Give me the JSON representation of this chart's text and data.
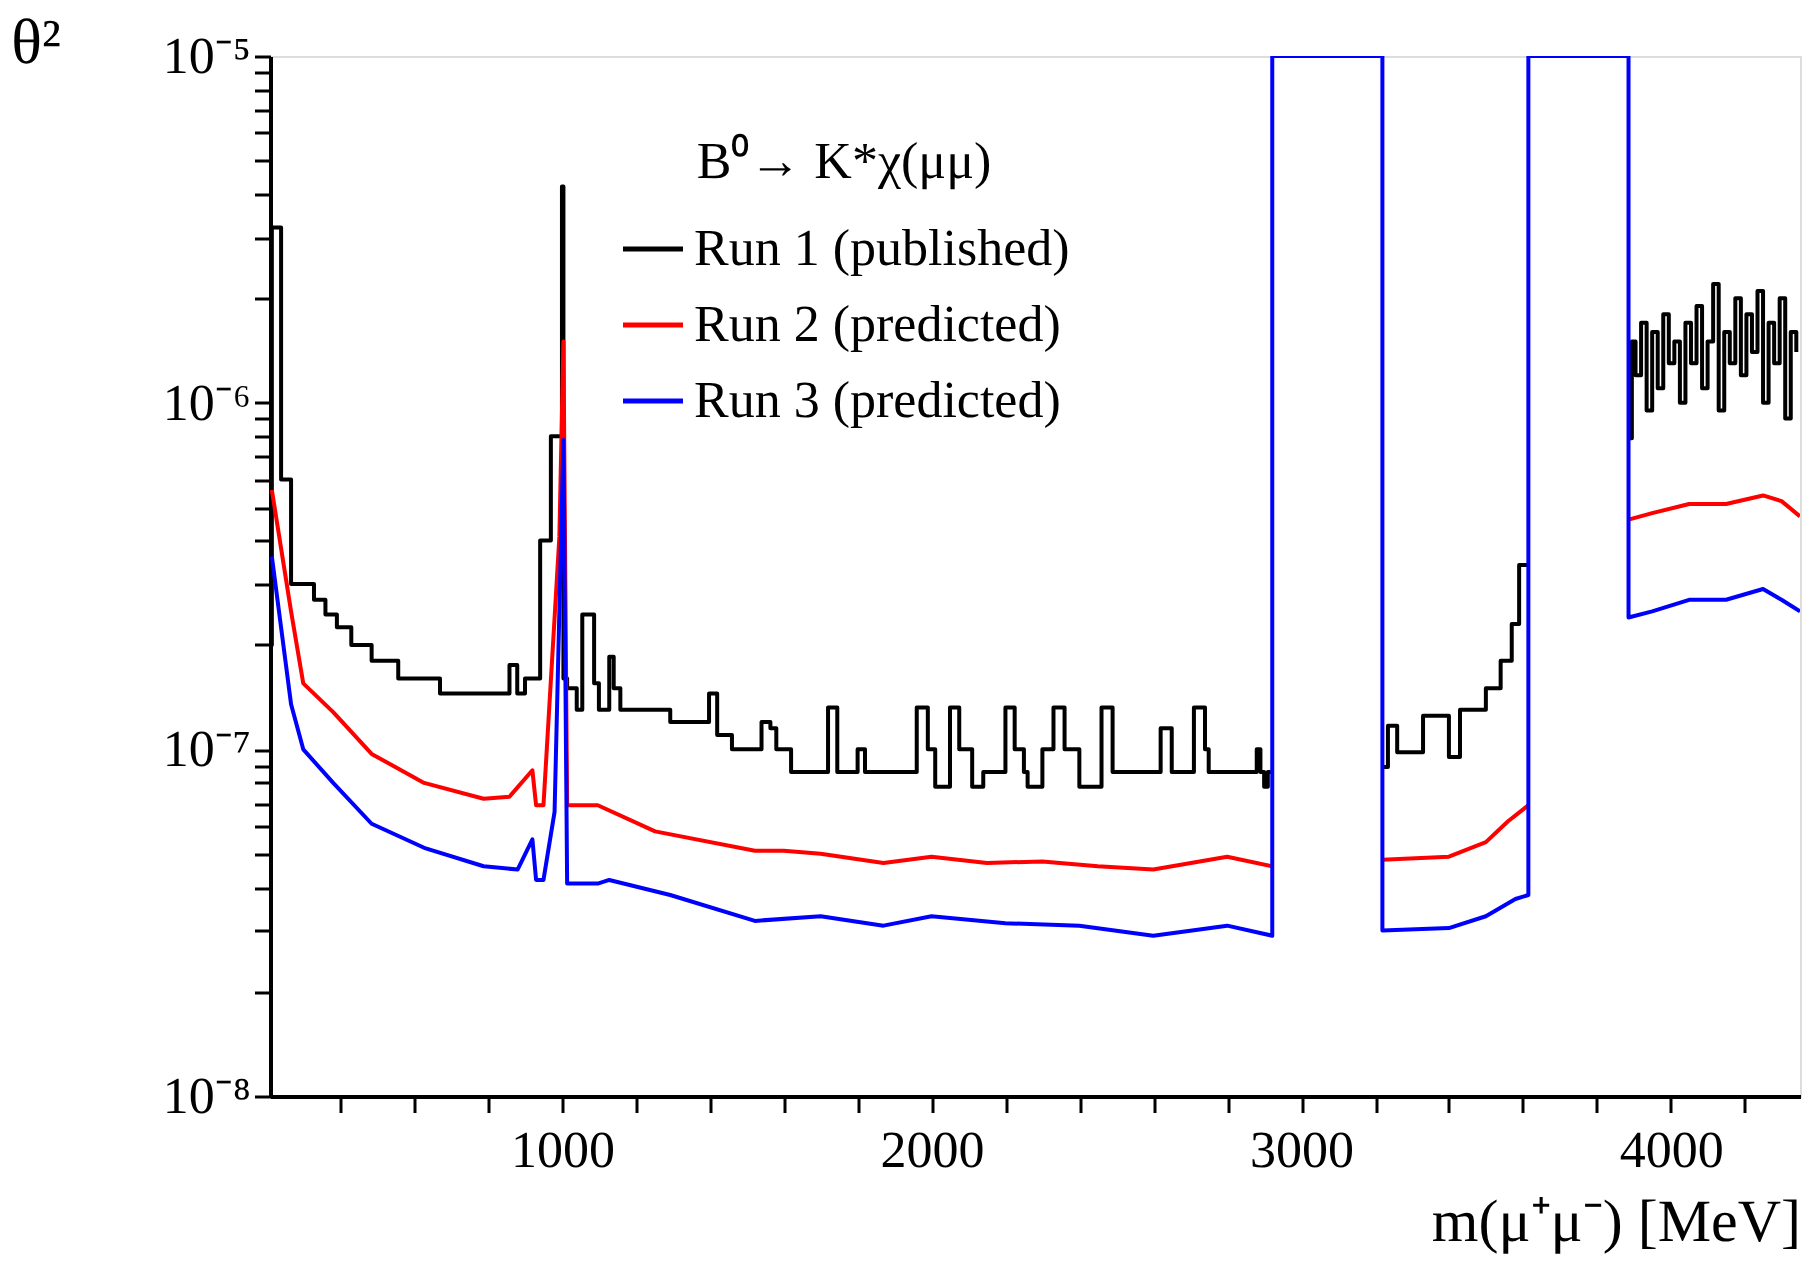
{
  "chart_data": {
    "type": "line",
    "xlabel": "m(μ⁺μ⁻) [MeV]",
    "ylabel": "θ²",
    "legend_title": "B⁰→ K*χ(μμ)",
    "log": "y",
    "grid": false,
    "legend": "top",
    "line_style": "solid",
    "marker": "none",
    "xlim": [
      210,
      4350
    ],
    "xticks": [
      {
        "value": 400,
        "label": null
      },
      {
        "value": 600,
        "label": null
      },
      {
        "value": 800,
        "label": null
      },
      1000,
      {
        "value": 1200,
        "label": null
      },
      {
        "value": 1400,
        "label": null
      },
      {
        "value": 1600,
        "label": null
      },
      {
        "value": 1800,
        "label": null
      },
      2000,
      {
        "value": 2200,
        "label": null
      },
      {
        "value": 2400,
        "label": null
      },
      {
        "value": 2600,
        "label": null
      },
      {
        "value": 2800,
        "label": null
      },
      3000,
      {
        "value": 3200,
        "label": null
      },
      {
        "value": 3400,
        "label": null
      },
      {
        "value": 3600,
        "label": null
      },
      {
        "value": 3800,
        "label": null
      },
      4000,
      {
        "value": 4200,
        "label": null
      }
    ],
    "ylim": [
      1e-08,
      1e-05
    ],
    "yticks": [
      {
        "value": 1e-08,
        "label": "10⁻⁸"
      },
      {
        "value": 2e-08,
        "label": null
      },
      {
        "value": 3e-08,
        "label": null
      },
      {
        "value": 4e-08,
        "label": null
      },
      {
        "value": 5e-08,
        "label": null
      },
      {
        "value": 6e-08,
        "label": null
      },
      {
        "value": 7e-08,
        "label": null
      },
      {
        "value": 8e-08,
        "label": null
      },
      {
        "value": 9e-08,
        "label": null
      },
      {
        "value": 1e-07,
        "label": "10⁻⁷"
      },
      {
        "value": 2e-07,
        "label": null
      },
      {
        "value": 3e-07,
        "label": null
      },
      {
        "value": 4e-07,
        "label": null
      },
      {
        "value": 5e-07,
        "label": null
      },
      {
        "value": 6e-07,
        "label": null
      },
      {
        "value": 7e-07,
        "label": null
      },
      {
        "value": 8e-07,
        "label": null
      },
      {
        "value": 9e-07,
        "label": null
      },
      {
        "value": 1e-06,
        "label": "10⁻⁶"
      },
      {
        "value": 2e-06,
        "label": null
      },
      {
        "value": 3e-06,
        "label": null
      },
      {
        "value": 4e-06,
        "label": null
      },
      {
        "value": 5e-06,
        "label": null
      },
      {
        "value": 6e-06,
        "label": null
      },
      {
        "value": 7e-06,
        "label": null
      },
      {
        "value": 8e-06,
        "label": null
      },
      {
        "value": 9e-06,
        "label": null
      },
      {
        "value": 1e-05,
        "label": "10⁻⁵"
      }
    ],
    "series": [
      {
        "name": "Run 1 (published)",
        "color": "#000000",
        "type": "step",
        "x": [
          211,
          215,
          240,
          267,
          329,
          360,
          391,
          430,
          485,
          557,
          670,
          858,
          879,
          900,
          941,
          970,
          1000,
          1004,
          1014,
          1040,
          1055,
          1087,
          1100,
          1128,
          1140,
          1158,
          1200,
          1293,
          1398,
          1420,
          1460,
          1540,
          1564,
          1580,
          1620,
          1720,
          1745,
          1800,
          1820,
          1960,
          1990,
          2010,
          2050,
          2075,
          2110,
          2140,
          2200,
          2225,
          2250,
          2260,
          2300,
          2330,
          2360,
          2400,
          2460,
          2490,
          2620,
          2650,
          2710,
          2740,
          2750,
          2880,
          2890,
          2900,
          2910,
          2922,
          3000,
          3220,
          3235,
          3260,
          3330,
          3400,
          3430,
          3500,
          3540,
          3570,
          3590,
          3615,
          3700,
          3886,
          3895,
          3905,
          3920,
          3935,
          3950,
          3965,
          3980,
          3995,
          4010,
          4025,
          4040,
          4055,
          4070,
          4085,
          4100,
          4115,
          4130,
          4145,
          4160,
          4175,
          4190,
          4205,
          4220,
          4235,
          4250,
          4265,
          4280,
          4295,
          4310,
          4325,
          4340
        ],
        "values": [
          2e-07,
          3.2e-06,
          6e-07,
          3e-07,
          2.7e-07,
          2.45e-07,
          2.25e-07,
          2e-07,
          1.8e-07,
          1.6e-07,
          1.45e-07,
          1.75e-07,
          1.45e-07,
          1.6e-07,
          4e-07,
          8e-07,
          4.2e-06,
          1.6e-07,
          1.5e-07,
          1.3e-07,
          2.45e-07,
          1.55e-07,
          1.3e-07,
          1.85e-07,
          1.5e-07,
          1.3e-07,
          1.3e-07,
          1.2e-07,
          1.45e-07,
          1.1e-07,
          1e-07,
          1.2e-07,
          1.15e-07,
          1e-07,
          8.6e-08,
          1.32e-07,
          8.6e-08,
          1e-07,
          8.6e-08,
          1.32e-07,
          1e-07,
          7.8e-08,
          1.32e-07,
          1e-07,
          7.8e-08,
          8.6e-08,
          1.32e-07,
          1e-07,
          8.6e-08,
          7.8e-08,
          1e-07,
          1.32e-07,
          1e-07,
          7.8e-08,
          1.32e-07,
          8.6e-08,
          1.15e-07,
          8.6e-08,
          1.32e-07,
          1e-07,
          8.6e-08,
          1e-07,
          8.6e-08,
          7.8e-08,
          8.6e-08,
          8.6e-08,
          null,
          8.9e-08,
          1.17e-07,
          9.8e-08,
          1.25e-07,
          9.5e-08,
          1.3e-07,
          1.5e-07,
          1.8e-07,
          2.3e-07,
          3.4e-07,
          3.4e-07,
          null,
          7.9e-07,
          1.5e-06,
          1.2e-06,
          1.7e-06,
          9.5e-07,
          1.6e-06,
          1.1e-06,
          1.8e-06,
          1.3e-06,
          1.5e-06,
          1e-06,
          1.7e-06,
          1.3e-06,
          1.9e-06,
          1.1e-06,
          1.5e-06,
          2.2e-06,
          9.5e-07,
          1.6e-06,
          1.3e-06,
          2e-06,
          1.2e-06,
          1.8e-06,
          1.4e-06,
          2.1e-06,
          1e-06,
          1.7e-06,
          1.3e-06,
          2e-06,
          9e-07,
          1.6e-06,
          1.4e-06
        ]
      },
      {
        "name": "Run 2 (predicted)",
        "color": "#ff0000",
        "x": [
          215,
          267,
          300,
          381,
          485,
          627,
          788,
          858,
          920,
          930,
          950,
          993,
          1004,
          1014,
          1097,
          1252,
          1522,
          1600,
          1700,
          1870,
          2000,
          2150,
          2300,
          2450,
          2600,
          2800,
          2922,
          3000,
          3220,
          3400,
          3500,
          3560,
          3615,
          3700,
          3886,
          3950,
          4050,
          4150,
          4250,
          4300,
          4350
        ],
        "values": [
          5.6e-07,
          2.5e-07,
          1.55e-07,
          1.28e-07,
          9.7e-08,
          8e-08,
          7.2e-08,
          7.3e-08,
          8.7e-08,
          6.9e-08,
          6.9e-08,
          4.1e-07,
          1.5e-06,
          6.9e-08,
          6.9e-08,
          5.8e-08,
          5.1e-08,
          5.1e-08,
          5e-08,
          4.7e-08,
          4.9e-08,
          4.7e-08,
          4.75e-08,
          4.6e-08,
          4.5e-08,
          4.9e-08,
          4.6e-08,
          null,
          4.8e-08,
          4.9e-08,
          5.4e-08,
          6.2e-08,
          6.9e-08,
          null,
          4.6e-07,
          4.8e-07,
          5.1e-07,
          5.1e-07,
          5.4e-07,
          5.2e-07,
          4.7e-07
        ]
      },
      {
        "name": "Run 3 (predicted)",
        "color": "#0000ff",
        "x": [
          215,
          267,
          300,
          381,
          485,
          627,
          788,
          880,
          920,
          930,
          950,
          980,
          1004,
          1014,
          1097,
          1128,
          1293,
          1522,
          1700,
          1870,
          2000,
          2200,
          2400,
          2600,
          2800,
          2922,
          2922,
          3220,
          3220,
          3400,
          3500,
          3580,
          3615,
          3615,
          3886,
          3886,
          3950,
          4050,
          4150,
          4250,
          4300,
          4350
        ],
        "values": [
          3.6e-07,
          1.35e-07,
          1e-07,
          8e-08,
          6.1e-08,
          5.2e-08,
          4.6e-08,
          4.5e-08,
          5.5e-08,
          4.2e-08,
          4.2e-08,
          6.6e-08,
          7.8e-07,
          4.1e-08,
          4.1e-08,
          4.2e-08,
          3.8e-08,
          3.2e-08,
          3.3e-08,
          3.1e-08,
          3.3e-08,
          3.15e-08,
          3.1e-08,
          2.9e-08,
          3.1e-08,
          2.9e-08,
          1e-05,
          1e-05,
          3e-08,
          3.05e-08,
          3.3e-08,
          3.7e-08,
          3.8e-08,
          1e-05,
          1e-05,
          2.4e-07,
          2.5e-07,
          2.7e-07,
          2.7e-07,
          2.9e-07,
          2.7e-07,
          2.5e-07
        ]
      }
    ]
  }
}
